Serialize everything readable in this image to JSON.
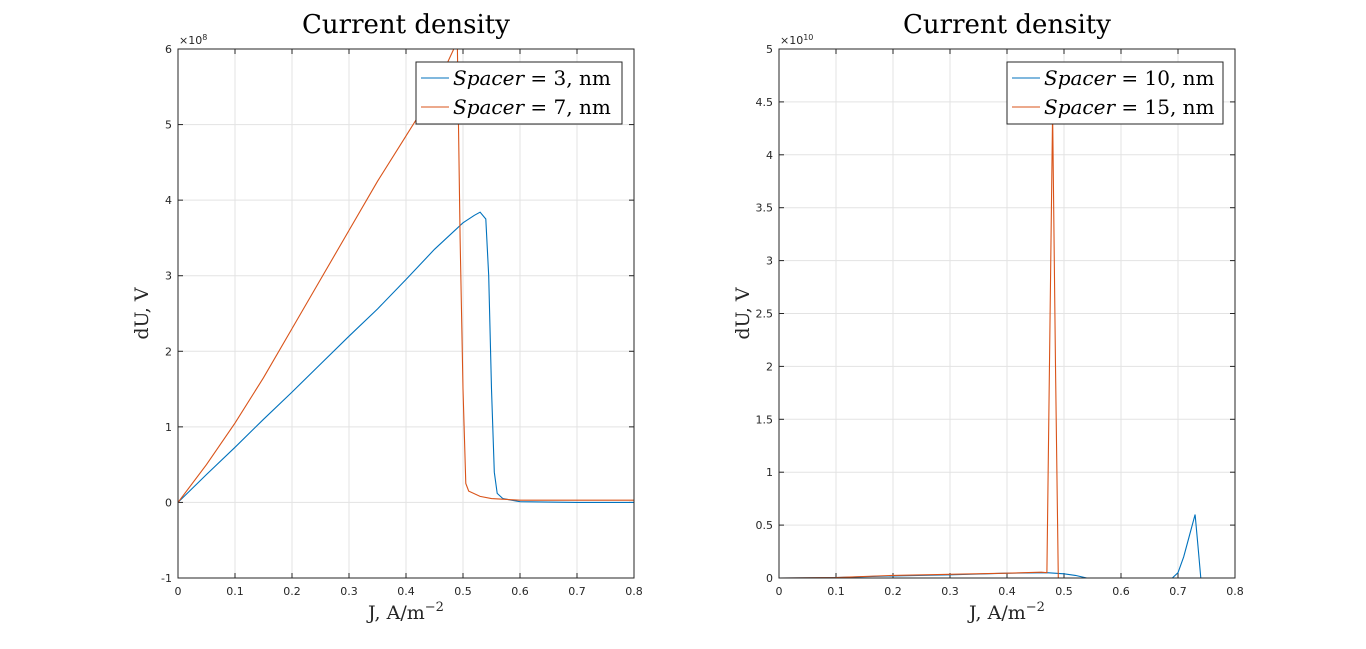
{
  "chart_data": [
    {
      "type": "line",
      "title": "Current density",
      "xlabel": "J, A/m",
      "xlabel_sup": "−2",
      "ylabel": "dU, V",
      "xlim": [
        0,
        0.8
      ],
      "ylim": [
        -1,
        6
      ],
      "y_exponent_label": "×10",
      "y_exponent": "8",
      "xticks": [
        "0",
        "0.1",
        "0.2",
        "0.3",
        "0.4",
        "0.5",
        "0.6",
        "0.7",
        "0.8"
      ],
      "yticks": [
        "-1",
        "0",
        "1",
        "2",
        "3",
        "4",
        "5",
        "6"
      ],
      "grid": true,
      "legend_position": "top-right",
      "series": [
        {
          "name": "Spacer = 3, nm",
          "name_var": "Spacer",
          "name_rest": " = 3, nm",
          "color": "#0072BD",
          "x": [
            0,
            0.05,
            0.1,
            0.15,
            0.2,
            0.25,
            0.3,
            0.35,
            0.4,
            0.45,
            0.5,
            0.52,
            0.53,
            0.54,
            0.545,
            0.55,
            0.555,
            0.56,
            0.57,
            0.6,
            0.7,
            0.8
          ],
          "y": [
            0,
            0.37,
            0.73,
            1.1,
            1.46,
            1.83,
            2.2,
            2.56,
            2.95,
            3.35,
            3.7,
            3.8,
            3.84,
            3.75,
            3.0,
            1.5,
            0.4,
            0.12,
            0.05,
            0.01,
            0.0,
            0.0
          ]
        },
        {
          "name": "Spacer = 7, nm",
          "name_var": "Spacer",
          "name_rest": " = 7, nm",
          "color": "#D95319",
          "x": [
            0,
            0.05,
            0.1,
            0.15,
            0.2,
            0.25,
            0.3,
            0.35,
            0.4,
            0.45,
            0.49,
            0.495,
            0.5,
            0.505,
            0.51,
            0.53,
            0.55,
            0.6,
            0.7,
            0.8
          ],
          "y": [
            0,
            0.5,
            1.05,
            1.65,
            2.3,
            2.95,
            3.6,
            4.25,
            4.85,
            5.45,
            6.1,
            3.5,
            1.5,
            0.25,
            0.15,
            0.08,
            0.05,
            0.03,
            0.03,
            0.03
          ]
        }
      ]
    },
    {
      "type": "line",
      "title": "Current density",
      "xlabel": "J, A/m",
      "xlabel_sup": "−2",
      "ylabel": "dU, V",
      "xlim": [
        0,
        0.8
      ],
      "ylim": [
        0,
        5
      ],
      "y_exponent_label": "×10",
      "y_exponent": "10",
      "xticks": [
        "0",
        "0.1",
        "0.2",
        "0.3",
        "0.4",
        "0.5",
        "0.6",
        "0.7",
        "0.8"
      ],
      "yticks": [
        "0",
        "0.5",
        "1",
        "1.5",
        "2",
        "2.5",
        "3",
        "3.5",
        "4",
        "4.5",
        "5"
      ],
      "grid": true,
      "legend_position": "top-right",
      "series": [
        {
          "name": "Spacer = 10, nm",
          "name_var": "Spacer",
          "name_rest": " = 10, nm",
          "color": "#0072BD",
          "x": [
            0,
            0.1,
            0.2,
            0.3,
            0.4,
            0.47,
            0.5,
            0.52,
            0.54,
            0.6,
            0.69,
            0.7,
            0.71,
            0.72,
            0.73,
            0.735,
            0.74,
            0.75,
            0.8
          ],
          "y": [
            0,
            0.005,
            0.02,
            0.03,
            0.045,
            0.05,
            0.04,
            0.025,
            0.0,
            0.0,
            0.0,
            0.05,
            0.2,
            0.4,
            0.6,
            0.3,
            0.0,
            0.0,
            0.0
          ]
        },
        {
          "name": "Spacer = 15, nm",
          "name_var": "Spacer",
          "name_rest": " = 15, nm",
          "color": "#D95319",
          "x": [
            0,
            0.1,
            0.2,
            0.3,
            0.4,
            0.46,
            0.47,
            0.48,
            0.485,
            0.49,
            0.5,
            0.6,
            0.7,
            0.8
          ],
          "y": [
            0,
            0.005,
            0.025,
            0.035,
            0.045,
            0.055,
            0.05,
            4.4,
            2.0,
            0.0,
            0.0,
            0.0,
            0.0,
            0.0
          ]
        }
      ]
    }
  ]
}
